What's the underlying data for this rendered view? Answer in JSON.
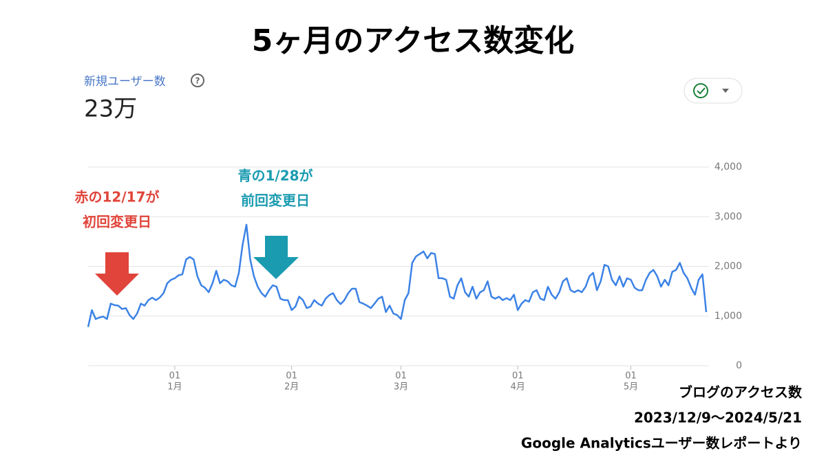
{
  "chart_data": {
    "type": "line",
    "title": "5ヶ月のアクセス数変化",
    "metric_label": "新規ユーザー数",
    "metric_value": "23万",
    "color": "#3b82e6",
    "categories": [
      null,
      null,
      null,
      null,
      null,
      null,
      null,
      null,
      null,
      null,
      null,
      null,
      null,
      null,
      null,
      null,
      null,
      null,
      null,
      null,
      null,
      null,
      null,
      {
        "day": "01",
        "month": "1月"
      },
      null,
      null,
      null,
      null,
      null,
      null,
      null,
      null,
      null,
      null,
      null,
      null,
      null,
      null,
      null,
      null,
      null,
      null,
      null,
      null,
      null,
      null,
      null,
      null,
      null,
      null,
      null,
      null,
      null,
      null,
      {
        "day": "01",
        "month": "2月"
      },
      null,
      null,
      null,
      null,
      null,
      null,
      null,
      null,
      null,
      null,
      null,
      null,
      null,
      null,
      null,
      null,
      null,
      null,
      null,
      null,
      null,
      null,
      null,
      null,
      null,
      null,
      null,
      null,
      {
        "day": "01",
        "month": "3月"
      },
      null,
      null,
      null,
      null,
      null,
      null,
      null,
      null,
      null,
      null,
      null,
      null,
      null,
      null,
      null,
      null,
      null,
      null,
      null,
      null,
      null,
      null,
      null,
      null,
      null,
      null,
      null,
      null,
      null,
      null,
      {
        "day": "01",
        "month": "4月"
      },
      null,
      null,
      null,
      null,
      null,
      null,
      null,
      null,
      null,
      null,
      null,
      null,
      null,
      null,
      null,
      null,
      null,
      null,
      null,
      null,
      null,
      null,
      null,
      null,
      null,
      null,
      null,
      null,
      null,
      {
        "day": "01",
        "month": "5月"
      },
      null,
      null,
      null,
      null,
      null,
      null,
      null,
      null,
      null,
      null,
      null,
      null,
      null,
      null,
      null,
      null,
      null,
      null,
      null,
      null
    ],
    "values": [
      780,
      1120,
      940,
      970,
      990,
      940,
      1250,
      1220,
      1210,
      1140,
      1160,
      1020,
      940,
      1050,
      1250,
      1210,
      1320,
      1370,
      1320,
      1370,
      1460,
      1660,
      1730,
      1760,
      1820,
      1840,
      2140,
      2190,
      2140,
      1800,
      1620,
      1570,
      1480,
      1660,
      1910,
      1660,
      1730,
      1700,
      1620,
      1590,
      1870,
      2440,
      2840,
      2140,
      1800,
      1590,
      1460,
      1390,
      1520,
      1620,
      1590,
      1350,
      1320,
      1320,
      1120,
      1190,
      1390,
      1320,
      1160,
      1190,
      1320,
      1250,
      1210,
      1350,
      1420,
      1460,
      1320,
      1240,
      1320,
      1460,
      1550,
      1550,
      1280,
      1250,
      1210,
      1160,
      1250,
      1350,
      1390,
      1080,
      1210,
      1050,
      1020,
      940,
      1320,
      1460,
      2070,
      2200,
      2250,
      2300,
      2160,
      2270,
      2250,
      1760,
      1760,
      1730,
      1390,
      1350,
      1620,
      1760,
      1480,
      1390,
      1590,
      1350,
      1480,
      1520,
      1700,
      1390,
      1350,
      1390,
      1320,
      1360,
      1320,
      1430,
      1120,
      1250,
      1320,
      1290,
      1480,
      1520,
      1350,
      1320,
      1590,
      1430,
      1350,
      1480,
      1700,
      1760,
      1520,
      1480,
      1520,
      1480,
      1590,
      1800,
      1870,
      1520,
      1700,
      2030,
      2000,
      1730,
      1620,
      1800,
      1590,
      1760,
      1730,
      1570,
      1520,
      1520,
      1730,
      1870,
      1930,
      1800,
      1590,
      1730,
      1620,
      1890,
      1930,
      2070,
      1870,
      1760,
      1570,
      1430,
      1730,
      1840,
      1080
    ],
    "ylim": [
      0,
      4000
    ],
    "yticks": [
      0,
      {
        "value": 1000,
        "label": "1,000"
      },
      {
        "value": 2000,
        "label": "2,000"
      },
      {
        "value": 3000,
        "label": "3,000"
      },
      {
        "value": 4000,
        "label": "4,000"
      }
    ],
    "grid": true,
    "annotations": [
      {
        "lines": [
          "赤の12/17が",
          "初回変更日"
        ],
        "color": "#e0443a"
      },
      {
        "lines": [
          "青の1/28が",
          "前回変更日"
        ],
        "color": "#1a9bb0"
      }
    ],
    "note": [
      "ブログのアクセス数",
      "2023/12/9～2024/5/21",
      "Google Analyticsユーザー数レポートより"
    ]
  }
}
